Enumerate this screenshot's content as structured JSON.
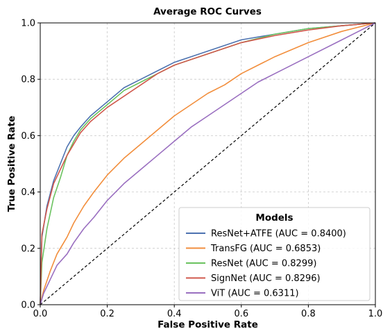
{
  "chart_data": {
    "type": "line",
    "title": "Average ROC Curves",
    "xlabel": "False Positive Rate",
    "ylabel": "True Positive Rate",
    "xlim": [
      0.0,
      1.0
    ],
    "ylim": [
      0.0,
      1.0
    ],
    "xticks": [
      "0.0",
      "0.2",
      "0.4",
      "0.6",
      "0.8",
      "1.0"
    ],
    "yticks": [
      "0.0",
      "0.2",
      "0.4",
      "0.6",
      "0.8",
      "1.0"
    ],
    "grid": true,
    "legend": {
      "title": "Models",
      "placement": "lower-right"
    },
    "series": [
      {
        "name": "ResNet+ATFE (AUC = 0.8400)",
        "color": "#4c72b0",
        "x": [
          0.0,
          0.005,
          0.02,
          0.04,
          0.06,
          0.08,
          0.1,
          0.12,
          0.15,
          0.2,
          0.25,
          0.3,
          0.35,
          0.4,
          0.45,
          0.5,
          0.55,
          0.6,
          0.7,
          0.8,
          0.9,
          1.0
        ],
        "y": [
          0.0,
          0.24,
          0.35,
          0.44,
          0.5,
          0.56,
          0.6,
          0.63,
          0.67,
          0.72,
          0.77,
          0.8,
          0.83,
          0.86,
          0.88,
          0.9,
          0.92,
          0.94,
          0.96,
          0.98,
          0.99,
          1.0
        ]
      },
      {
        "name": "TransFG (AUC = 0.6853)",
        "color": "#f28e3c",
        "x": [
          0.0,
          0.01,
          0.03,
          0.05,
          0.08,
          0.1,
          0.13,
          0.16,
          0.2,
          0.25,
          0.3,
          0.35,
          0.4,
          0.45,
          0.5,
          0.55,
          0.6,
          0.65,
          0.7,
          0.8,
          0.9,
          1.0
        ],
        "y": [
          0.0,
          0.05,
          0.12,
          0.18,
          0.24,
          0.29,
          0.35,
          0.4,
          0.46,
          0.52,
          0.57,
          0.62,
          0.67,
          0.71,
          0.75,
          0.78,
          0.82,
          0.85,
          0.88,
          0.93,
          0.97,
          1.0
        ]
      },
      {
        "name": "ResNet (AUC = 0.8299)",
        "color": "#6ac25f",
        "x": [
          0.0,
          0.005,
          0.02,
          0.04,
          0.06,
          0.08,
          0.1,
          0.12,
          0.15,
          0.2,
          0.25,
          0.3,
          0.35,
          0.4,
          0.45,
          0.5,
          0.55,
          0.6,
          0.7,
          0.8,
          0.9,
          1.0
        ],
        "y": [
          0.0,
          0.15,
          0.27,
          0.38,
          0.45,
          0.53,
          0.58,
          0.62,
          0.66,
          0.71,
          0.76,
          0.79,
          0.82,
          0.85,
          0.87,
          0.89,
          0.91,
          0.93,
          0.96,
          0.98,
          0.99,
          1.0
        ]
      },
      {
        "name": "SignNet (AUC = 0.8296)",
        "color": "#d0584c",
        "x": [
          0.0,
          0.005,
          0.02,
          0.04,
          0.06,
          0.08,
          0.1,
          0.12,
          0.15,
          0.2,
          0.25,
          0.3,
          0.35,
          0.4,
          0.45,
          0.5,
          0.55,
          0.6,
          0.7,
          0.8,
          0.9,
          1.0
        ],
        "y": [
          0.0,
          0.25,
          0.34,
          0.43,
          0.48,
          0.53,
          0.57,
          0.61,
          0.65,
          0.7,
          0.74,
          0.78,
          0.82,
          0.85,
          0.87,
          0.89,
          0.91,
          0.93,
          0.955,
          0.975,
          0.99,
          1.0
        ]
      },
      {
        "name": "ViT (AUC = 0.6311)",
        "color": "#9a6fc0",
        "x": [
          0.0,
          0.01,
          0.03,
          0.05,
          0.08,
          0.1,
          0.13,
          0.16,
          0.2,
          0.25,
          0.3,
          0.35,
          0.4,
          0.45,
          0.5,
          0.55,
          0.6,
          0.65,
          0.7,
          0.8,
          0.9,
          1.0
        ],
        "y": [
          0.0,
          0.04,
          0.09,
          0.14,
          0.18,
          0.22,
          0.27,
          0.31,
          0.37,
          0.43,
          0.48,
          0.53,
          0.58,
          0.63,
          0.67,
          0.71,
          0.75,
          0.79,
          0.82,
          0.88,
          0.94,
          1.0
        ]
      }
    ],
    "reference_line": {
      "style": "dashed",
      "color": "#000000",
      "x": [
        0.0,
        1.0
      ],
      "y": [
        0.0,
        1.0
      ]
    }
  }
}
